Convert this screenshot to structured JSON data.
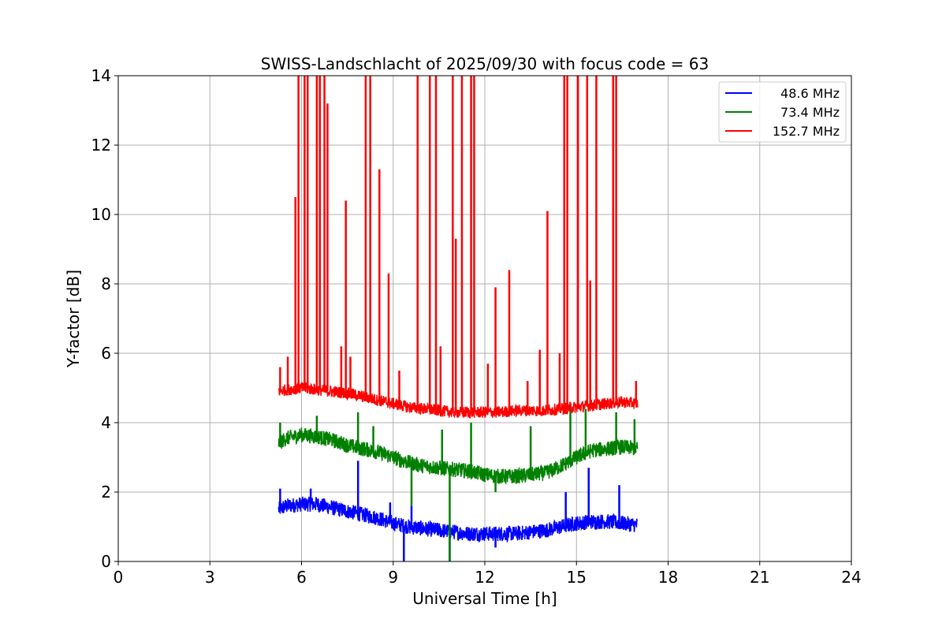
{
  "chart_data": {
    "type": "line",
    "title": "SWISS-Landschlacht of 2025/09/30 with focus code = 63",
    "xlabel": "Universal Time [h]",
    "ylabel": "Y-factor [dB]",
    "xlim": [
      0,
      24
    ],
    "ylim": [
      0,
      14
    ],
    "xticks": [
      0,
      3,
      6,
      9,
      12,
      15,
      18,
      21,
      24
    ],
    "yticks": [
      0,
      2,
      4,
      6,
      8,
      10,
      12,
      14
    ],
    "grid": true,
    "legend_position": "top-right",
    "series": [
      {
        "name": "48.6 MHz",
        "color": "#0000ff",
        "x": [
          5.25,
          5.5,
          6.0,
          6.5,
          7.0,
          7.5,
          8.0,
          8.5,
          9.0,
          9.5,
          10.0,
          10.5,
          11.0,
          11.5,
          12.0,
          12.5,
          13.0,
          13.5,
          14.0,
          14.5,
          15.0,
          15.5,
          16.0,
          16.5,
          17.0
        ],
        "values": [
          1.5,
          1.6,
          1.65,
          1.65,
          1.55,
          1.45,
          1.35,
          1.25,
          1.1,
          1.0,
          0.95,
          0.9,
          0.85,
          0.8,
          0.8,
          0.8,
          0.8,
          0.85,
          0.9,
          1.0,
          1.1,
          1.15,
          1.15,
          1.1,
          1.05
        ],
        "spikes": [
          [
            5.3,
            2.1
          ],
          [
            6.3,
            2.1
          ],
          [
            7.85,
            2.9
          ],
          [
            8.9,
            1.7
          ],
          [
            9.35,
            0.0
          ],
          [
            9.6,
            1.6
          ],
          [
            10.85,
            0.0
          ],
          [
            12.35,
            0.4
          ],
          [
            14.65,
            2.0
          ],
          [
            15.4,
            2.7
          ],
          [
            16.4,
            2.2
          ]
        ]
      },
      {
        "name": "73.4 MHz",
        "color": "#008000",
        "x": [
          5.25,
          5.5,
          6.0,
          6.5,
          7.0,
          7.5,
          8.0,
          8.5,
          9.0,
          9.5,
          10.0,
          10.5,
          11.0,
          11.5,
          12.0,
          12.5,
          13.0,
          13.5,
          14.0,
          14.5,
          15.0,
          15.5,
          16.0,
          16.5,
          17.0
        ],
        "values": [
          3.4,
          3.55,
          3.65,
          3.6,
          3.5,
          3.35,
          3.25,
          3.15,
          3.0,
          2.85,
          2.75,
          2.7,
          2.65,
          2.6,
          2.5,
          2.45,
          2.45,
          2.5,
          2.55,
          2.75,
          3.0,
          3.2,
          3.25,
          3.3,
          3.25
        ],
        "spikes": [
          [
            5.3,
            4.0
          ],
          [
            6.5,
            4.2
          ],
          [
            7.85,
            4.3
          ],
          [
            8.35,
            3.9
          ],
          [
            9.6,
            1.6
          ],
          [
            10.6,
            3.8
          ],
          [
            10.85,
            0.0
          ],
          [
            11.55,
            4.0
          ],
          [
            12.35,
            2.0
          ],
          [
            13.5,
            3.9
          ],
          [
            14.8,
            4.5
          ],
          [
            15.3,
            4.4
          ],
          [
            16.3,
            4.3
          ],
          [
            16.9,
            4.1
          ]
        ]
      },
      {
        "name": "152.7 MHz",
        "color": "#ff0000",
        "x": [
          5.25,
          5.5,
          6.0,
          6.5,
          7.0,
          7.5,
          8.0,
          8.5,
          9.0,
          9.5,
          10.0,
          10.5,
          11.0,
          11.5,
          12.0,
          12.5,
          13.0,
          13.5,
          14.0,
          14.5,
          15.0,
          15.5,
          16.0,
          16.5,
          17.0
        ],
        "values": [
          4.9,
          4.95,
          5.0,
          4.95,
          4.9,
          4.85,
          4.75,
          4.65,
          4.55,
          4.45,
          4.4,
          4.35,
          4.3,
          4.3,
          4.3,
          4.3,
          4.35,
          4.35,
          4.35,
          4.4,
          4.45,
          4.5,
          4.55,
          4.6,
          4.55
        ],
        "spikes": [
          [
            5.3,
            5.6
          ],
          [
            5.55,
            5.9
          ],
          [
            5.8,
            10.5
          ],
          [
            5.9,
            14
          ],
          [
            6.1,
            14
          ],
          [
            6.2,
            14
          ],
          [
            6.5,
            14
          ],
          [
            6.6,
            14
          ],
          [
            6.75,
            14
          ],
          [
            6.85,
            13.2
          ],
          [
            7.3,
            6.2
          ],
          [
            7.45,
            10.4
          ],
          [
            7.6,
            5.9
          ],
          [
            8.1,
            14
          ],
          [
            8.25,
            14
          ],
          [
            8.55,
            11.3
          ],
          [
            8.85,
            8.3
          ],
          [
            9.2,
            5.5
          ],
          [
            9.8,
            14
          ],
          [
            10.2,
            14
          ],
          [
            10.4,
            14
          ],
          [
            10.55,
            6.2
          ],
          [
            10.95,
            14
          ],
          [
            11.05,
            9.3
          ],
          [
            11.25,
            14
          ],
          [
            11.55,
            14
          ],
          [
            11.65,
            14
          ],
          [
            12.1,
            5.7
          ],
          [
            12.35,
            7.9
          ],
          [
            12.8,
            8.4
          ],
          [
            13.4,
            5.2
          ],
          [
            13.8,
            6.1
          ],
          [
            14.05,
            10.1
          ],
          [
            14.45,
            6.0
          ],
          [
            14.6,
            14
          ],
          [
            14.7,
            14
          ],
          [
            15.05,
            14
          ],
          [
            15.35,
            14
          ],
          [
            15.45,
            8.1
          ],
          [
            15.65,
            14
          ],
          [
            16.2,
            14
          ],
          [
            16.3,
            14
          ],
          [
            16.95,
            5.2
          ]
        ]
      }
    ]
  }
}
